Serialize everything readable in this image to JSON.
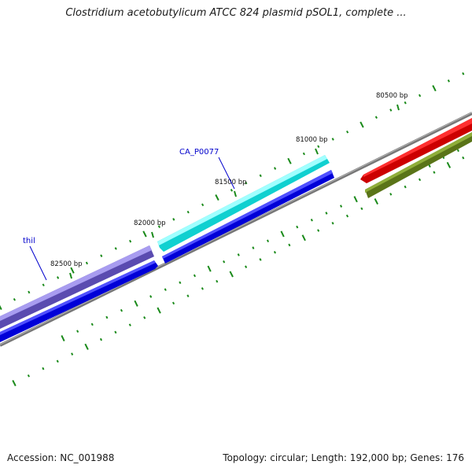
{
  "title": "Clostridium acetobutylicum ATCC 824 plasmid pSOL1, complete ...",
  "footer": {
    "accession": "Accession: NC_001988",
    "summary": "Topology: circular; Length: 192,000 bp; Genes: 176"
  },
  "position_labels": [
    "80500 bp",
    "81000 bp",
    "81500 bp",
    "82000 bp",
    "82500 bp"
  ],
  "gene_labels": [
    "CA_P0077",
    "thil"
  ],
  "colors": {
    "backbone": "#808080",
    "tick": "#1a8a1a",
    "gene_red": "#ee0000",
    "gene_olive": "#6e8c1e",
    "gene_cyan": "#22f0f0",
    "gene_blue": "#0000e0",
    "gene_purple": "#6f5fc8",
    "label_line": "#0000cc"
  }
}
